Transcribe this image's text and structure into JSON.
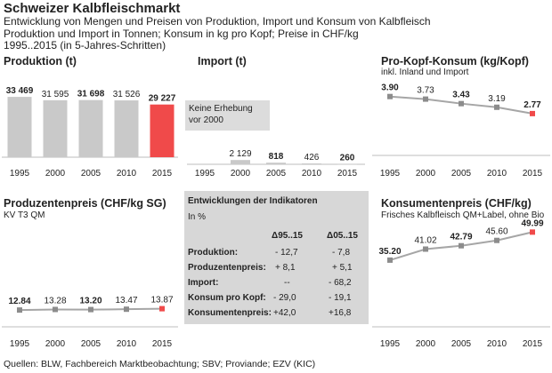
{
  "header": {
    "title": "Schweizer Kalbfleischmarkt",
    "sub1": "Entwicklung von Mengen und Preisen von Produktion, Import und Konsum von Kalbfleisch",
    "sub2": "Produktion und Import in Tonnen; Konsum in kg pro Kopf; Preise in CHF/kg",
    "sub3": "1995..2015 (in 5-Jahres-Schritten)"
  },
  "source": "Quellen: BLW, Fachbereich Marktbeobachtung; SBV; Proviande; EZV (KIC)",
  "colors": {
    "bar_grey": "#c9c9c9",
    "highlight": "#f04a4a",
    "line_grey": "#a6a6a6",
    "marker_grey": "#8c8c8c",
    "box": "#d7d7d7"
  },
  "chart_data": [
    {
      "id": "produktion",
      "type": "bar",
      "title": "Produktion (t)",
      "subtitle": "",
      "categories": [
        "1995",
        "2000",
        "2005",
        "2010",
        "2015"
      ],
      "values": [
        33469,
        31595,
        31698,
        31526,
        29227
      ],
      "labels": [
        "33 469",
        "31 595",
        "31 698",
        "31 526",
        "29 227"
      ],
      "bold": [
        true,
        false,
        true,
        false,
        true
      ],
      "highlight_index": 4,
      "ylim": [
        0,
        34000
      ]
    },
    {
      "id": "import",
      "type": "bar",
      "title": "Import (t)",
      "subtitle": "",
      "note": "Keine Erhebung vor 2000",
      "note_line1": "Keine Erhebung",
      "note_line2": "vor 2000",
      "categories": [
        "1995",
        "2000",
        "2005",
        "2010",
        "2015"
      ],
      "values": [
        null,
        2129,
        818,
        426,
        260
      ],
      "labels": [
        "",
        "2 129",
        "818",
        "426",
        "260"
      ],
      "bold": [
        false,
        false,
        true,
        false,
        true
      ],
      "ylim": [
        0,
        34000
      ]
    },
    {
      "id": "konsum",
      "type": "line",
      "title": "Pro-Kopf-Konsum (kg/Kopf)",
      "subtitle": "inkl. Inland und Import",
      "categories": [
        "1995",
        "2000",
        "2005",
        "2010",
        "2015"
      ],
      "values": [
        3.9,
        3.73,
        3.43,
        3.19,
        2.77
      ],
      "labels": [
        "3.90",
        "3.73",
        "3.43",
        "3.19",
        "2.77"
      ],
      "bold": [
        true,
        false,
        true,
        false,
        true
      ],
      "highlight_index": 4,
      "ylim": [
        0,
        5
      ]
    },
    {
      "id": "produzentenpreis",
      "type": "line",
      "title": "Produzentenpreis (CHF/kg SG)",
      "subtitle": "KV T3 QM",
      "categories": [
        "1995",
        "2000",
        "2005",
        "2010",
        "2015"
      ],
      "values": [
        12.84,
        13.28,
        13.2,
        13.47,
        13.87
      ],
      "labels": [
        "12.84",
        "13.28",
        "13.20",
        "13.47",
        "13.87"
      ],
      "bold": [
        true,
        false,
        true,
        false,
        false
      ],
      "highlight_index": 4,
      "ylim": [
        0,
        70
      ]
    },
    {
      "id": "konsumentenpreis",
      "type": "line",
      "title": "Konsumentenpreis (CHF/kg)",
      "subtitle": "Frisches Kalbfleisch QM+Label, ohne Bio",
      "categories": [
        "1995",
        "2000",
        "2005",
        "2010",
        "2015"
      ],
      "values": [
        35.2,
        41.02,
        42.79,
        45.6,
        49.99
      ],
      "labels": [
        "35.20",
        "41.02",
        "42.79",
        "45.60",
        "49.99"
      ],
      "bold": [
        true,
        false,
        true,
        false,
        true
      ],
      "highlight_index": 4,
      "ylim": [
        0,
        60
      ]
    },
    {
      "id": "indikatoren",
      "type": "table",
      "title": "Entwicklungen der Indikatoren",
      "unit": "In %",
      "columns": [
        "Δ95..15",
        "Δ05..15"
      ],
      "rows": [
        {
          "label": "Produktion:",
          "d1": "- 12,7",
          "d2": "- 7,8"
        },
        {
          "label": "Produzentenpreis:",
          "d1": "+ 8,1",
          "d2": "+ 5,1"
        },
        {
          "label": "Import:",
          "d1": "--",
          "d2": "- 68,2"
        },
        {
          "label": "Konsum pro Kopf:",
          "d1": "- 29,0",
          "d2": "- 19,1"
        },
        {
          "label": "Konsumentenpreis:",
          "d1": "+42,0",
          "d2": "+16,8"
        }
      ]
    }
  ]
}
